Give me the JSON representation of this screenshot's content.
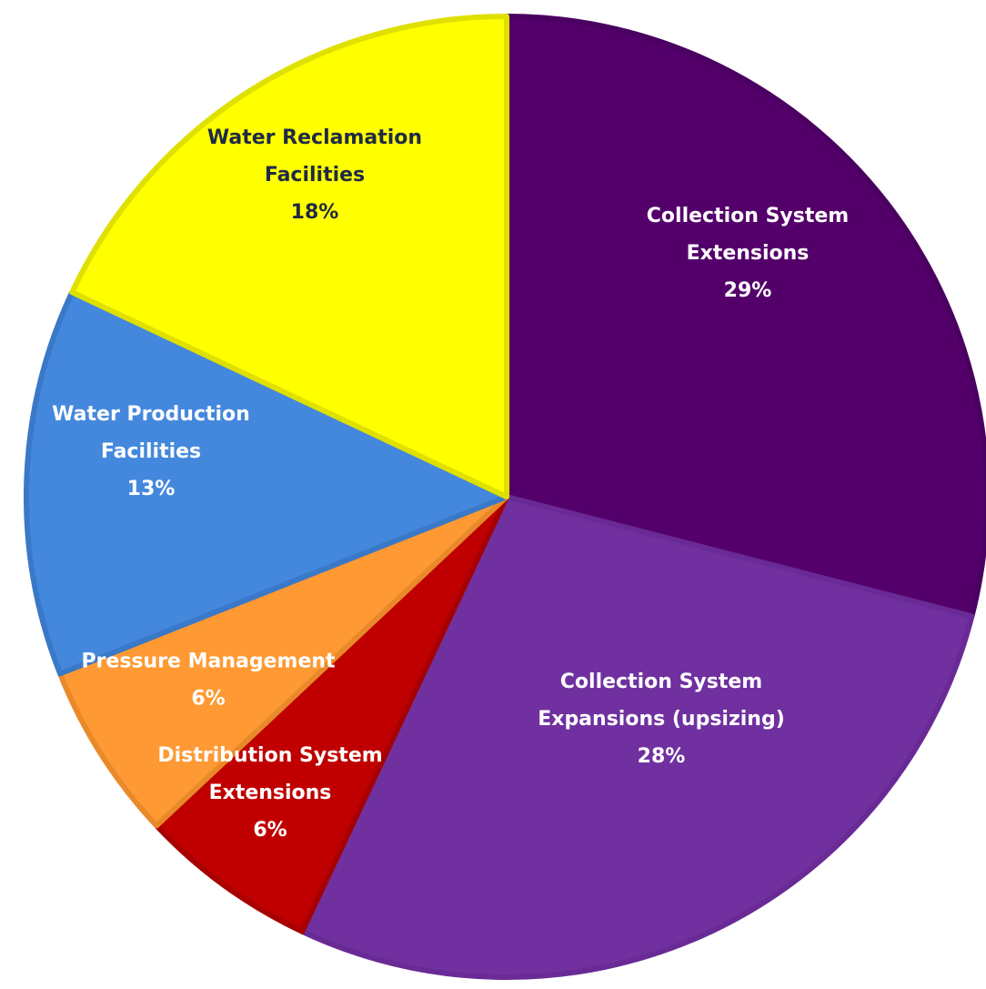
{
  "chart_data": {
    "type": "pie",
    "title": "",
    "start_angle_deg": 0,
    "direction": "clockwise",
    "slices": [
      {
        "name": "Collection System Extensions",
        "label_lines": [
          "Collection System",
          "Extensions"
        ],
        "value": 29,
        "pct_label": "29%",
        "color": "#54006B",
        "border": "#4A0060",
        "label_color": "#FFFFFF"
      },
      {
        "name": "Collection System Expansions (upsizing)",
        "label_lines": [
          "Collection System",
          "Expansions (upsizing)"
        ],
        "value": 28,
        "pct_label": "28%",
        "color": "#7030A0",
        "border": "#6A2A95",
        "label_color": "#FFFFFF"
      },
      {
        "name": "Distribution System Extensions",
        "label_lines": [
          "Distribution System",
          "Extensions"
        ],
        "value": 6,
        "pct_label": "6%",
        "color": "#C00000",
        "border": "#A80000",
        "label_color": "#FFFFFF"
      },
      {
        "name": "Pressure Management",
        "label_lines": [
          "Pressure Management"
        ],
        "value": 6,
        "pct_label": "6%",
        "color": "#FF9933",
        "border": "#E88A2A",
        "label_color": "#FFFFFF"
      },
      {
        "name": "Water Production Facilities",
        "label_lines": [
          "Water Production",
          "Facilities"
        ],
        "value": 13,
        "pct_label": "13%",
        "color": "#4488DD",
        "border": "#3A78C8",
        "label_color": "#FFFFFF"
      },
      {
        "name": "Water Reclamation Facilities",
        "label_lines": [
          "Water Reclamation",
          "Facilities"
        ],
        "value": 18,
        "pct_label": "18%",
        "color": "#FFFF00",
        "border": "#E0E000",
        "label_color": "#1F2A44"
      }
    ]
  }
}
